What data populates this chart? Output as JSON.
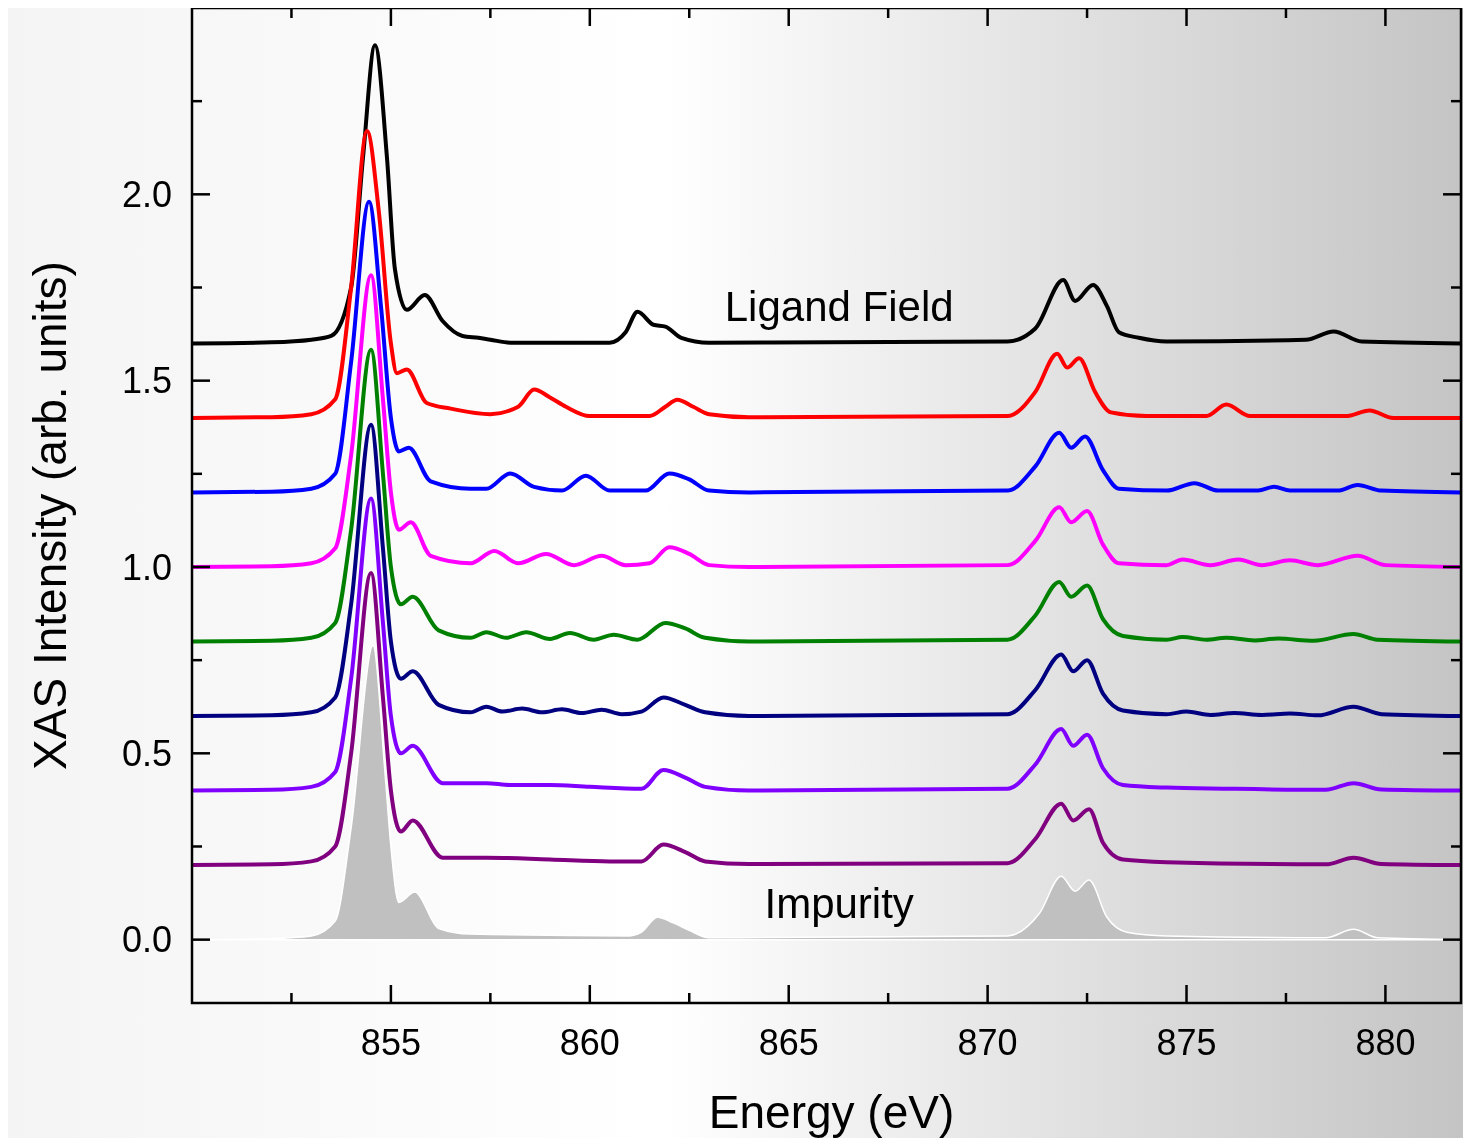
{
  "chart_data": {
    "type": "line",
    "xlabel": "Energy (eV)",
    "ylabel": "XAS Intensity (arb. units)",
    "xlim": [
      850,
      881.9
    ],
    "ylim": [
      -0.17,
      2.5
    ],
    "xticks": [
      {
        "value": 852.5,
        "label": null
      },
      855,
      {
        "value": 857.5,
        "label": null
      },
      860,
      {
        "value": 862.5,
        "label": null
      },
      865,
      {
        "value": 867.5,
        "label": null
      },
      870,
      {
        "value": 872.5,
        "label": null
      },
      875,
      {
        "value": 877.5,
        "label": null
      },
      880
    ],
    "yticks": [
      {
        "value": 0,
        "label": "0.0"
      },
      {
        "value": 0.25,
        "label": null
      },
      0.5,
      {
        "value": 0.75,
        "label": null
      },
      {
        "value": 1,
        "label": "1.0"
      },
      {
        "value": 1.25,
        "label": null
      },
      1.5,
      {
        "value": 1.75,
        "label": null
      },
      {
        "value": 2,
        "label": "2.0"
      },
      {
        "value": 2.25,
        "label": null
      }
    ],
    "annotations": [
      "Ligand Field",
      "Impurity"
    ],
    "series": [
      {
        "color": "#000000",
        "x": [
          850,
          852,
          853,
          853.5,
          854,
          854.3,
          854.6,
          854.9,
          855.1,
          855.4,
          855.85,
          856.3,
          856.8,
          857.2,
          857.5,
          858,
          860.5,
          860.9,
          861.2,
          861.6,
          861.9,
          862.3,
          863,
          870.5,
          871.2,
          871.9,
          872.2,
          872.65,
          873,
          873.3,
          873.8,
          874.5,
          878,
          878.7,
          879.4,
          881.9
        ],
        "values": [
          1.6,
          1.603,
          1.61,
          1.62,
          1.75,
          2.1,
          2.4,
          2.1,
          1.8,
          1.69,
          1.73,
          1.66,
          1.62,
          1.615,
          1.61,
          1.602,
          1.602,
          1.63,
          1.685,
          1.65,
          1.645,
          1.615,
          1.602,
          1.605,
          1.64,
          1.77,
          1.714,
          1.757,
          1.7,
          1.63,
          1.615,
          1.605,
          1.61,
          1.632,
          1.605,
          1.6
        ]
      },
      {
        "color": "#ff0000",
        "x": [
          850,
          852,
          853,
          853.6,
          854,
          854.4,
          854.7,
          855,
          855.15,
          855.4,
          855.9,
          856.5,
          857.5,
          858.2,
          858.6,
          859,
          859.4,
          860,
          861.5,
          861.9,
          862.2,
          862.6,
          863,
          864,
          870.5,
          871.2,
          871.75,
          872,
          872.3,
          872.7,
          873.1,
          874,
          875.5,
          876,
          876.6,
          879,
          879.6,
          880.2,
          881.9
        ],
        "values": [
          1.4,
          1.402,
          1.41,
          1.45,
          1.75,
          2.17,
          1.95,
          1.6,
          1.52,
          1.53,
          1.44,
          1.425,
          1.41,
          1.43,
          1.476,
          1.455,
          1.43,
          1.405,
          1.405,
          1.43,
          1.449,
          1.43,
          1.41,
          1.402,
          1.405,
          1.47,
          1.572,
          1.535,
          1.56,
          1.47,
          1.415,
          1.405,
          1.405,
          1.436,
          1.405,
          1.405,
          1.42,
          1.4,
          1.4
        ]
      },
      {
        "color": "#0000ff",
        "x": [
          850,
          852,
          853,
          853.6,
          854,
          854.45,
          854.75,
          855,
          855.2,
          855.45,
          856,
          857,
          857.4,
          858,
          858.6,
          859.3,
          859.9,
          860.5,
          861.4,
          862,
          862.5,
          863,
          864,
          870.5,
          871.2,
          871.8,
          872.1,
          872.45,
          872.9,
          873.3,
          874.5,
          875.2,
          875.8,
          876.8,
          877.2,
          877.6,
          878.8,
          879.3,
          879.9,
          881.9
        ],
        "values": [
          1.2,
          1.202,
          1.21,
          1.25,
          1.55,
          1.98,
          1.7,
          1.4,
          1.31,
          1.32,
          1.23,
          1.21,
          1.21,
          1.251,
          1.215,
          1.205,
          1.245,
          1.205,
          1.205,
          1.251,
          1.235,
          1.205,
          1.2,
          1.205,
          1.27,
          1.36,
          1.32,
          1.35,
          1.26,
          1.21,
          1.205,
          1.225,
          1.205,
          1.205,
          1.215,
          1.205,
          1.205,
          1.22,
          1.205,
          1.2
        ]
      },
      {
        "color": "#ff00ff",
        "x": [
          850,
          852,
          853,
          853.6,
          854,
          854.5,
          854.8,
          855,
          855.2,
          855.5,
          856,
          857,
          857.6,
          858.2,
          858.9,
          859.6,
          860.3,
          860.9,
          861.5,
          862,
          862.5,
          863,
          864,
          870.5,
          871.2,
          871.8,
          872.1,
          872.5,
          872.9,
          873.3,
          874.5,
          874.9,
          875.6,
          876.3,
          876.9,
          877.6,
          878.3,
          879.3,
          880,
          881.9
        ],
        "values": [
          1.0,
          1.002,
          1.01,
          1.05,
          1.3,
          1.783,
          1.45,
          1.2,
          1.1,
          1.12,
          1.03,
          1.01,
          1.043,
          1.01,
          1.035,
          1.005,
          1.03,
          1.005,
          1.01,
          1.053,
          1.035,
          1.005,
          1.0,
          1.005,
          1.07,
          1.16,
          1.12,
          1.15,
          1.06,
          1.01,
          1.005,
          1.02,
          1.005,
          1.02,
          1.005,
          1.018,
          1.005,
          1.03,
          1.005,
          1.0
        ]
      },
      {
        "color": "#008000",
        "x": [
          850,
          852,
          853,
          853.6,
          854,
          854.5,
          854.8,
          855,
          855.25,
          855.55,
          856.2,
          857,
          857.4,
          857.9,
          858.4,
          859,
          859.5,
          860.1,
          860.6,
          861.2,
          861.9,
          862.4,
          862.9,
          864,
          870.5,
          871.2,
          871.8,
          872.1,
          872.5,
          872.9,
          873.4,
          874.5,
          874.9,
          875.5,
          876,
          876.7,
          877.3,
          878.2,
          879.2,
          879.8,
          881.9
        ],
        "values": [
          0.8,
          0.802,
          0.81,
          0.85,
          1.1,
          1.583,
          1.25,
          1.0,
          0.9,
          0.92,
          0.83,
          0.81,
          0.825,
          0.81,
          0.825,
          0.807,
          0.823,
          0.805,
          0.818,
          0.805,
          0.85,
          0.835,
          0.81,
          0.8,
          0.805,
          0.87,
          0.96,
          0.92,
          0.95,
          0.86,
          0.815,
          0.805,
          0.812,
          0.805,
          0.81,
          0.803,
          0.808,
          0.802,
          0.82,
          0.805,
          0.8
        ]
      },
      {
        "color": "#000080",
        "x": [
          850,
          852,
          853,
          853.6,
          854,
          854.5,
          854.8,
          855,
          855.25,
          855.55,
          856.2,
          857,
          857.4,
          857.8,
          858.3,
          858.8,
          859.3,
          859.8,
          860.3,
          860.8,
          861.3,
          861.85,
          862.4,
          862.9,
          864,
          870.5,
          871.2,
          871.85,
          872.15,
          872.5,
          872.9,
          873.4,
          874.5,
          875,
          875.6,
          876.2,
          876.9,
          877.6,
          878.3,
          879.2,
          879.9,
          881.9
        ],
        "values": [
          0.6,
          0.602,
          0.61,
          0.65,
          0.9,
          1.382,
          1.05,
          0.8,
          0.7,
          0.72,
          0.63,
          0.61,
          0.625,
          0.612,
          0.62,
          0.61,
          0.618,
          0.608,
          0.617,
          0.605,
          0.612,
          0.65,
          0.63,
          0.61,
          0.6,
          0.605,
          0.67,
          0.765,
          0.72,
          0.75,
          0.66,
          0.615,
          0.605,
          0.612,
          0.603,
          0.608,
          0.603,
          0.607,
          0.602,
          0.625,
          0.605,
          0.6
        ]
      },
      {
        "color": "#8000ff",
        "x": [
          850,
          852,
          853,
          853.6,
          854,
          854.5,
          854.8,
          855,
          855.25,
          855.55,
          856.3,
          857.4,
          858,
          859,
          860,
          861.3,
          861.85,
          862.4,
          862.9,
          864,
          870.5,
          871.2,
          871.85,
          872.15,
          872.5,
          872.9,
          873.4,
          874.5,
          876,
          878.5,
          879.2,
          879.9,
          881.9
        ],
        "values": [
          0.4,
          0.402,
          0.41,
          0.45,
          0.7,
          1.184,
          0.85,
          0.6,
          0.5,
          0.52,
          0.42,
          0.42,
          0.415,
          0.415,
          0.41,
          0.405,
          0.455,
          0.435,
          0.41,
          0.4,
          0.405,
          0.47,
          0.565,
          0.52,
          0.55,
          0.46,
          0.415,
          0.408,
          0.405,
          0.402,
          0.42,
          0.403,
          0.4
        ]
      },
      {
        "color": "#800080",
        "x": [
          850,
          852,
          853,
          853.6,
          854,
          854.5,
          854.8,
          855,
          855.25,
          855.55,
          856.3,
          857.4,
          859,
          860.5,
          861.3,
          861.85,
          862.4,
          862.9,
          864,
          870.5,
          871.2,
          871.85,
          872.15,
          872.55,
          872.9,
          873.4,
          874.5,
          878.5,
          879.2,
          879.9,
          881.9
        ],
        "values": [
          0.2,
          0.202,
          0.21,
          0.25,
          0.5,
          0.984,
          0.65,
          0.4,
          0.29,
          0.32,
          0.22,
          0.22,
          0.215,
          0.21,
          0.21,
          0.255,
          0.235,
          0.21,
          0.203,
          0.205,
          0.27,
          0.365,
          0.32,
          0.35,
          0.26,
          0.215,
          0.208,
          0.202,
          0.22,
          0.203,
          0.2
        ]
      },
      {
        "type": "area",
        "color": "#c0c0c0",
        "x": [
          850,
          852,
          853,
          853.6,
          854,
          854.55,
          854.85,
          855,
          855.2,
          855.6,
          856.2,
          857,
          861,
          861.3,
          861.7,
          862.1,
          862.5,
          863,
          870.5,
          871.3,
          871.85,
          872.2,
          872.55,
          873,
          873.5,
          874.5,
          878.5,
          879.2,
          879.8,
          881.9
        ],
        "values": [
          0.0,
          0.003,
          0.01,
          0.05,
          0.3,
          0.789,
          0.45,
          0.25,
          0.1,
          0.128,
          0.03,
          0.015,
          0.01,
          0.02,
          0.06,
          0.045,
          0.025,
          0.005,
          0.01,
          0.07,
          0.17,
          0.13,
          0.16,
          0.06,
          0.02,
          0.01,
          0.005,
          0.028,
          0.005,
          0.0
        ]
      }
    ]
  }
}
